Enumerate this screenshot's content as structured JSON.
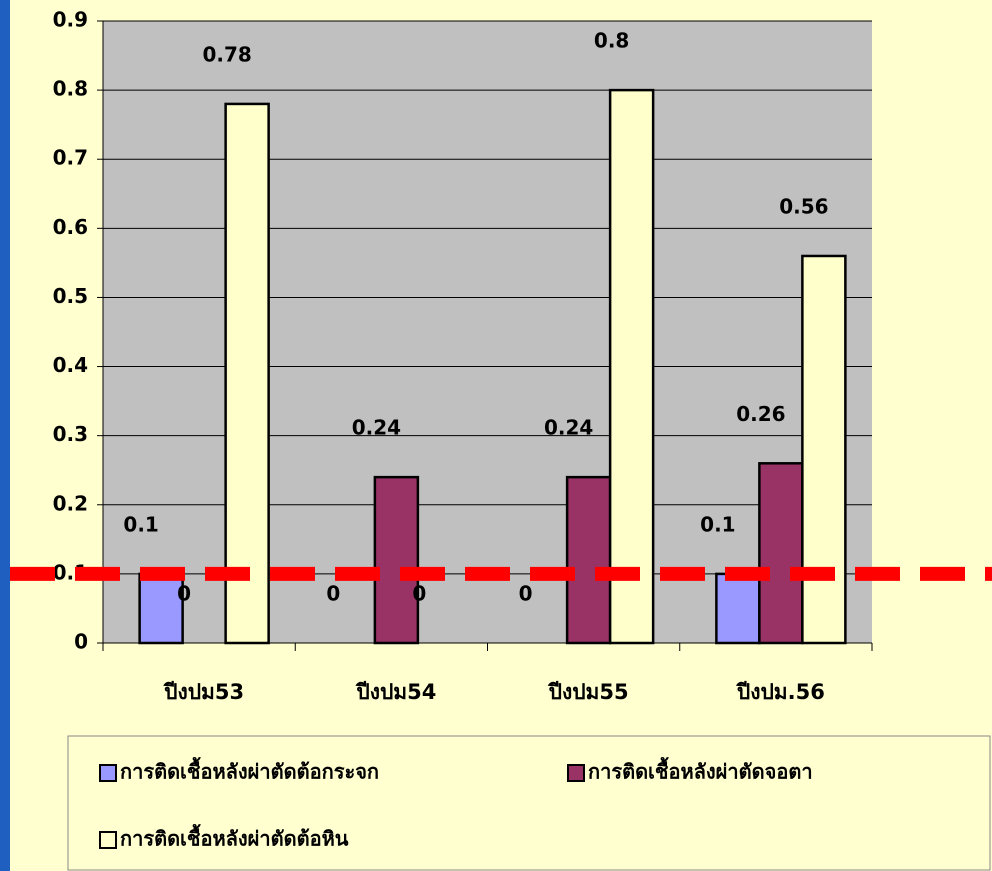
{
  "chart_data": {
    "type": "bar",
    "categories": [
      "ปีงปม53",
      "ปีงปม54",
      "ปีงปม55",
      "ปีงปม.56"
    ],
    "series": [
      {
        "name": "การติดเชื้อหลังผ่าตัดต้อกระจก",
        "color": "#9999ff",
        "values": [
          0.1,
          0,
          0,
          0.1
        ]
      },
      {
        "name": "การติดเชื้อหลังผ่าตัดจอตา",
        "color": "#993366",
        "values": [
          0,
          0.24,
          0.24,
          0.26
        ]
      },
      {
        "name": "การติดเชื้อหลังผ่าตัดต้อหิน",
        "color": "#ffffcc",
        "values": [
          0.78,
          0,
          0.8,
          0.56
        ]
      }
    ],
    "ylim": [
      0,
      0.9
    ],
    "yticks": [
      0,
      0.1,
      0.2,
      0.3,
      0.4,
      0.5,
      0.6,
      0.7,
      0.8,
      0.9
    ],
    "grid": true,
    "reference_line": 0.1,
    "reference_color": "#ff0000"
  }
}
